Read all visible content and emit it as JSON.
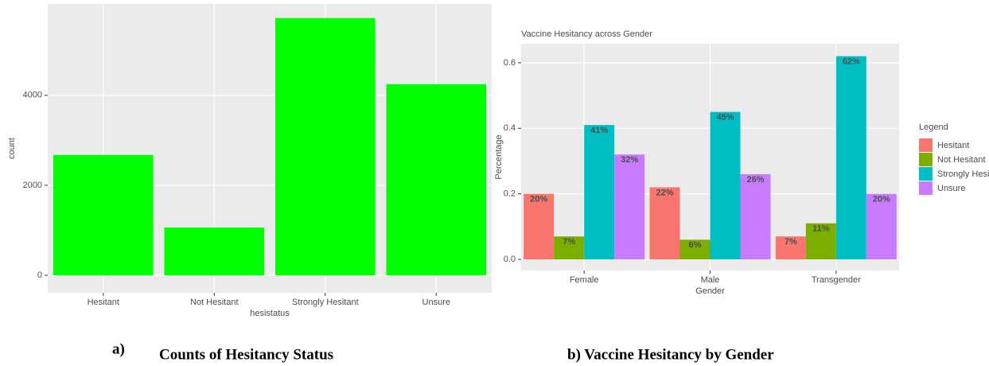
{
  "chart_data": [
    {
      "type": "bar",
      "x_label": "hesistatus",
      "y_label": "count",
      "categories": [
        "Hesitant",
        "Not Hesitant",
        "Strongly Hesitant",
        "Unsure"
      ],
      "values": [
        2673,
        1062,
        5717,
        4248
      ],
      "color": "#00FF00",
      "ylim": [
        -390,
        6030
      ],
      "yticks": [
        0,
        2000,
        4000
      ],
      "grid": true,
      "caption_letter": "a)",
      "caption": "Counts of Hesitancy Status"
    },
    {
      "type": "bar",
      "title": "Vaccine Hesitancy across Gender",
      "x_label": "Gender",
      "y_label": "Percentage",
      "categories": [
        "Female",
        "Male",
        "Transgender"
      ],
      "series": [
        {
          "name": "Hesitant",
          "color": "#F8766D",
          "values": [
            0.2,
            0.22,
            0.07
          ],
          "value_labels": [
            "20%",
            "22%",
            "7%"
          ]
        },
        {
          "name": "Not Hesitant",
          "color": "#7CAE00",
          "values": [
            0.07,
            0.06,
            0.11
          ],
          "value_labels": [
            "7%",
            "6%",
            "11%"
          ]
        },
        {
          "name": "Strongly Hesitant",
          "color": "#00BFC4",
          "values": [
            0.41,
            0.45,
            0.62
          ],
          "value_labels": [
            "41%",
            "45%",
            "62%"
          ]
        },
        {
          "name": "Unsure",
          "color": "#C77CFF",
          "values": [
            0.32,
            0.26,
            0.2
          ],
          "value_labels": [
            "32%",
            "26%",
            "20%"
          ]
        }
      ],
      "legend_title": "Legend",
      "legend": "right",
      "ylim": [
        -0.034,
        0.658
      ],
      "yticks": [
        {
          "value": 0,
          "label": "0.0"
        },
        0.2,
        0.4,
        0.6
      ],
      "grid": true,
      "caption": "b) Vaccine Hesitancy by Gender"
    }
  ]
}
